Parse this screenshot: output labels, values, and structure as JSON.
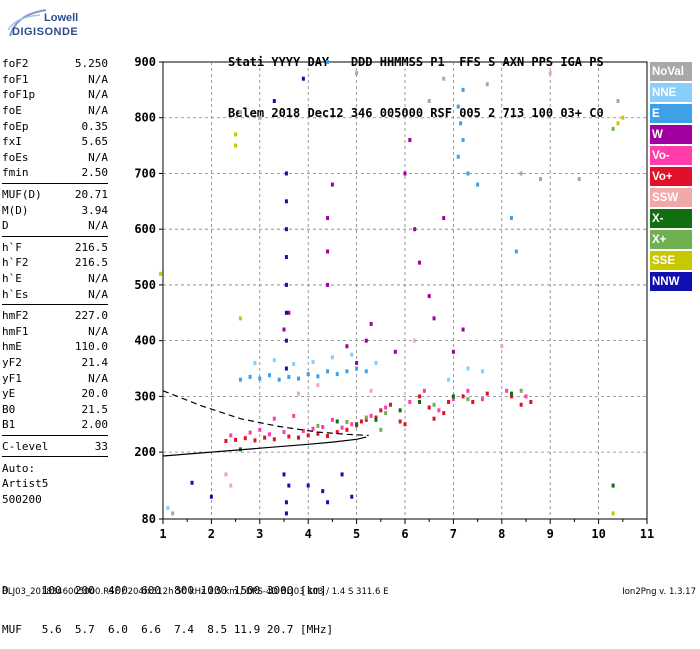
{
  "logo": {
    "line1": "Lowell",
    "line2": "DIGISONDE"
  },
  "header": {
    "line1": "Stati YYYY DAY   DDD HHMMSS P1  FFS S AXN PPS IGA PS",
    "line2": "Belem 2018 Dec12 346 005000 RSF 005 2 713 100 03+ C0"
  },
  "params": [
    {
      "name": "foF2",
      "value": "5.250"
    },
    {
      "name": "foF1",
      "value": "N/A"
    },
    {
      "name": "foF1p",
      "value": "N/A"
    },
    {
      "name": "foE",
      "value": "N/A"
    },
    {
      "name": "foEp",
      "value": "0.35"
    },
    {
      "name": "fxI",
      "value": "5.65"
    },
    {
      "name": "foEs",
      "value": "N/A"
    },
    {
      "name": "fmin",
      "value": "2.50"
    },
    {
      "name": "MUF(D)",
      "value": "20.71",
      "sep": true
    },
    {
      "name": "M(D)",
      "value": "3.94"
    },
    {
      "name": "D",
      "value": "N/A"
    },
    {
      "name": "h`F",
      "value": "216.5",
      "sep": true
    },
    {
      "name": "h`F2",
      "value": "216.5"
    },
    {
      "name": "h`E",
      "value": "N/A"
    },
    {
      "name": "h`Es",
      "value": "N/A"
    },
    {
      "name": "hmF2",
      "value": "227.0",
      "sep": true
    },
    {
      "name": "hmF1",
      "value": "N/A"
    },
    {
      "name": "hmE",
      "value": "110.0"
    },
    {
      "name": "yF2",
      "value": "21.4"
    },
    {
      "name": "yF1",
      "value": "N/A"
    },
    {
      "name": "yE",
      "value": "20.0"
    },
    {
      "name": "B0",
      "value": "21.5"
    },
    {
      "name": "B1",
      "value": "2.00"
    },
    {
      "name": "C-level",
      "value": "33",
      "sep": true
    },
    {
      "name": "Auto:",
      "value": "",
      "sep": true
    },
    {
      "name": "Artist5",
      "value": ""
    },
    {
      "name": "500200",
      "value": ""
    }
  ],
  "legend": [
    {
      "label": "NoVal",
      "color": "#a8a8a8"
    },
    {
      "label": "NNE",
      "color": "#87cefa"
    },
    {
      "label": "E",
      "color": "#3ea0e6"
    },
    {
      "label": "W",
      "color": "#a000a0"
    },
    {
      "label": "Vo-",
      "color": "#ff3caa"
    },
    {
      "label": "Vo+",
      "color": "#e0102a"
    },
    {
      "label": "SSW",
      "color": "#f0a8a8"
    },
    {
      "label": "X-",
      "color": "#107010"
    },
    {
      "label": "X+",
      "color": "#70b050"
    },
    {
      "label": "SSE",
      "color": "#c8c800"
    },
    {
      "label": "NNW",
      "color": "#1010b0"
    }
  ],
  "footer": {
    "line1": "D     100  200  400  600  800 1000 1500 3000 [km]",
    "line2": "MUF   5.6  5.7  6.0  6.6  7.4  8.5 11.9 20.7 [MHz]",
    "bottom": "BLJ03_2018346005000.RSF / 204fx512h 50 kHz 2.5 km / DPS-4D BLJ03 103 / 1.4 S 311.6 E",
    "version": "Ion2Png v. 1.3.17"
  },
  "chart_data": {
    "type": "scatter",
    "xlim": [
      1,
      11
    ],
    "ylim": [
      80,
      900
    ],
    "x_ticks": [
      1,
      2,
      3,
      4,
      5,
      6,
      7,
      8,
      9,
      10,
      11
    ],
    "y_ticks": [
      80,
      200,
      300,
      400,
      500,
      600,
      700,
      800,
      900
    ],
    "grid": "dashed",
    "traces": [
      {
        "kind": "solid",
        "name": "",
        "x": [
          1.0,
          2.0,
          3.0,
          4.0,
          4.5,
          5.0,
          5.2
        ],
        "y": [
          193,
          200,
          207,
          214,
          218,
          223,
          227
        ]
      },
      {
        "kind": "dashed",
        "name": "",
        "x": [
          1.0,
          1.8,
          2.6,
          3.4,
          4.2,
          4.8,
          5.25
        ],
        "y": [
          310,
          283,
          260,
          246,
          236,
          232,
          230
        ]
      }
    ],
    "series": [
      {
        "name": "Vo+",
        "color": "#e0102a",
        "points": [
          [
            2.3,
            220
          ],
          [
            2.5,
            222
          ],
          [
            2.7,
            225
          ],
          [
            2.9,
            221
          ],
          [
            3.1,
            226
          ],
          [
            3.3,
            223
          ],
          [
            3.6,
            228
          ],
          [
            3.8,
            226
          ],
          [
            4.0,
            230
          ],
          [
            4.2,
            233
          ],
          [
            4.4,
            229
          ],
          [
            4.6,
            236
          ],
          [
            4.8,
            240
          ],
          [
            5.0,
            248
          ],
          [
            5.1,
            255
          ],
          [
            5.2,
            258
          ],
          [
            5.4,
            262
          ],
          [
            5.5,
            275
          ],
          [
            5.7,
            285
          ],
          [
            5.9,
            255
          ],
          [
            6.0,
            250
          ],
          [
            6.3,
            300
          ],
          [
            6.5,
            280
          ],
          [
            6.6,
            260
          ],
          [
            6.8,
            270
          ],
          [
            6.9,
            290
          ],
          [
            7.2,
            300
          ],
          [
            7.4,
            290
          ],
          [
            7.7,
            305
          ],
          [
            8.2,
            300
          ],
          [
            8.4,
            285
          ],
          [
            8.6,
            290
          ]
        ]
      },
      {
        "name": "Vo-",
        "color": "#ff3caa",
        "points": [
          [
            2.4,
            230
          ],
          [
            2.8,
            235
          ],
          [
            3.0,
            240
          ],
          [
            3.2,
            232
          ],
          [
            3.5,
            236
          ],
          [
            3.9,
            238
          ],
          [
            4.1,
            242
          ],
          [
            4.3,
            245
          ],
          [
            4.7,
            244
          ],
          [
            4.9,
            250
          ],
          [
            5.3,
            265
          ],
          [
            5.6,
            280
          ],
          [
            6.1,
            290
          ],
          [
            6.4,
            310
          ],
          [
            6.7,
            275
          ],
          [
            7.0,
            295
          ],
          [
            7.3,
            310
          ],
          [
            7.6,
            295
          ],
          [
            8.1,
            310
          ],
          [
            8.5,
            300
          ],
          [
            3.3,
            260
          ],
          [
            3.7,
            265
          ],
          [
            4.5,
            258
          ]
        ]
      },
      {
        "name": "W",
        "color": "#a000a0",
        "points": [
          [
            3.5,
            420
          ],
          [
            3.6,
            450
          ],
          [
            4.4,
            500
          ],
          [
            4.4,
            560
          ],
          [
            4.4,
            620
          ],
          [
            4.5,
            680
          ],
          [
            5.2,
            400
          ],
          [
            5.3,
            430
          ],
          [
            6.0,
            700
          ],
          [
            6.1,
            760
          ],
          [
            6.2,
            600
          ],
          [
            6.3,
            540
          ],
          [
            6.5,
            480
          ],
          [
            6.6,
            440
          ],
          [
            7.0,
            380
          ],
          [
            7.2,
            420
          ],
          [
            4.8,
            390
          ],
          [
            5.0,
            360
          ],
          [
            5.8,
            380
          ],
          [
            6.8,
            620
          ]
        ]
      },
      {
        "name": "E",
        "color": "#3ea0e6",
        "points": [
          [
            2.6,
            330
          ],
          [
            2.8,
            335
          ],
          [
            3.0,
            332
          ],
          [
            3.2,
            338
          ],
          [
            3.4,
            330
          ],
          [
            3.6,
            335
          ],
          [
            3.8,
            332
          ],
          [
            4.0,
            340
          ],
          [
            4.2,
            336
          ],
          [
            4.4,
            345
          ],
          [
            4.6,
            340
          ],
          [
            4.8,
            345
          ],
          [
            5.0,
            350
          ],
          [
            5.2,
            345
          ],
          [
            7.1,
            820
          ],
          [
            7.15,
            790
          ],
          [
            7.2,
            760
          ],
          [
            7.1,
            730
          ],
          [
            7.2,
            850
          ],
          [
            7.3,
            700
          ],
          [
            7.5,
            680
          ],
          [
            8.2,
            620
          ],
          [
            8.3,
            560
          ],
          [
            4.4,
            900
          ]
        ]
      },
      {
        "name": "NNE",
        "color": "#87cefa",
        "points": [
          [
            2.9,
            360
          ],
          [
            3.3,
            365
          ],
          [
            3.7,
            358
          ],
          [
            4.1,
            362
          ],
          [
            4.5,
            370
          ],
          [
            4.9,
            375
          ],
          [
            5.4,
            360
          ],
          [
            7.3,
            350
          ],
          [
            7.6,
            345
          ],
          [
            6.9,
            330
          ],
          [
            1.1,
            100
          ]
        ]
      },
      {
        "name": "NNW",
        "color": "#1010b0",
        "points": [
          [
            3.55,
            700
          ],
          [
            3.55,
            650
          ],
          [
            3.55,
            600
          ],
          [
            3.55,
            550
          ],
          [
            3.55,
            500
          ],
          [
            3.55,
            450
          ],
          [
            3.55,
            400
          ],
          [
            3.55,
            350
          ],
          [
            3.5,
            160
          ],
          [
            3.6,
            140
          ],
          [
            3.55,
            110
          ],
          [
            3.55,
            90
          ],
          [
            4.0,
            140
          ],
          [
            4.3,
            130
          ],
          [
            4.4,
            110
          ],
          [
            4.9,
            120
          ],
          [
            4.7,
            160
          ],
          [
            1.6,
            145
          ],
          [
            2.0,
            120
          ],
          [
            3.9,
            870
          ],
          [
            3.3,
            830
          ]
        ]
      },
      {
        "name": "X-",
        "color": "#107010",
        "points": [
          [
            4.6,
            255
          ],
          [
            5.0,
            250
          ],
          [
            5.4,
            258
          ],
          [
            5.9,
            275
          ],
          [
            6.3,
            290
          ],
          [
            7.0,
            300
          ],
          [
            8.2,
            305
          ],
          [
            10.3,
            140
          ],
          [
            2.6,
            205
          ]
        ]
      },
      {
        "name": "X+",
        "color": "#70b050",
        "points": [
          [
            4.2,
            247
          ],
          [
            4.8,
            254
          ],
          [
            5.2,
            262
          ],
          [
            5.6,
            270
          ],
          [
            6.6,
            285
          ],
          [
            7.3,
            295
          ],
          [
            8.4,
            310
          ],
          [
            10.3,
            780
          ],
          [
            5.5,
            240
          ]
        ]
      },
      {
        "name": "SSW",
        "color": "#f0a8a8",
        "points": [
          [
            2.3,
            160
          ],
          [
            2.4,
            140
          ],
          [
            3.8,
            305
          ],
          [
            4.2,
            320
          ],
          [
            5.3,
            310
          ],
          [
            9.0,
            880
          ],
          [
            8.0,
            390
          ],
          [
            6.2,
            400
          ]
        ]
      },
      {
        "name": "SSE",
        "color": "#c8c800",
        "points": [
          [
            0.95,
            520
          ],
          [
            2.5,
            770
          ],
          [
            2.5,
            750
          ],
          [
            2.6,
            440
          ],
          [
            10.5,
            800
          ],
          [
            10.4,
            790
          ],
          [
            10.3,
            90
          ]
        ]
      },
      {
        "name": "NoVal",
        "color": "#a8a8a8",
        "points": [
          [
            2.6,
            810
          ],
          [
            10.4,
            830
          ],
          [
            9.6,
            690
          ],
          [
            8.8,
            690
          ],
          [
            8.4,
            700
          ],
          [
            7.7,
            860
          ],
          [
            6.8,
            870
          ],
          [
            6.5,
            830
          ],
          [
            5.0,
            880
          ],
          [
            3.0,
            800
          ],
          [
            1.2,
            90
          ]
        ]
      }
    ]
  }
}
